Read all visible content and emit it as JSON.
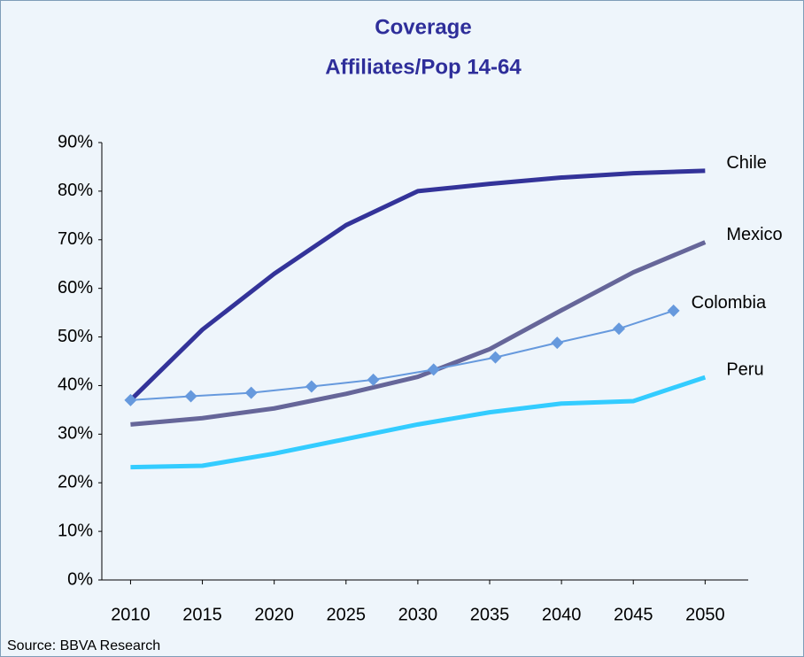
{
  "chart_data": {
    "type": "line",
    "title": "Coverage",
    "subtitle": "Affiliates/Pop 14-64",
    "source": "Source: BBVA Research",
    "xlim": [
      2008,
      2053
    ],
    "xticks": [
      2010,
      2015,
      2020,
      2025,
      2030,
      2035,
      2040,
      2045,
      2050
    ],
    "ylim": [
      0,
      90
    ],
    "yticks": [
      {
        "value": 0,
        "label": "0%"
      },
      {
        "value": 10,
        "label": "10%"
      },
      {
        "value": 20,
        "label": "20%"
      },
      {
        "value": 30,
        "label": "30%"
      },
      {
        "value": 40,
        "label": "40%"
      },
      {
        "value": 50,
        "label": "50%"
      },
      {
        "value": 60,
        "label": "60%"
      },
      {
        "value": 70,
        "label": "70%"
      },
      {
        "value": 80,
        "label": "80%"
      },
      {
        "value": 90,
        "label": "90%"
      }
    ],
    "series": [
      {
        "name": "Chile",
        "color": "#333399",
        "x": [
          2010,
          2015,
          2020,
          2025,
          2030,
          2035,
          2040,
          2045,
          2050
        ],
        "values": [
          37,
          51.5,
          63,
          73,
          80,
          81.5,
          82.8,
          83.7,
          84.2
        ]
      },
      {
        "name": "Mexico",
        "color": "#666699",
        "x": [
          2010,
          2015,
          2020,
          2025,
          2030,
          2035,
          2040,
          2045,
          2050
        ],
        "values": [
          32,
          33.3,
          35.3,
          38.3,
          41.8,
          47.5,
          55.5,
          63.3,
          69.5
        ]
      },
      {
        "name": "Colombia",
        "color": "#6699dd",
        "marker": "diamond",
        "x": [
          2010,
          2014.2,
          2018.4,
          2022.6,
          2026.9,
          2031.1,
          2035.4,
          2039.7,
          2044,
          2047.8
        ],
        "values": [
          37,
          37.8,
          38.5,
          39.8,
          41.2,
          43.3,
          45.8,
          48.8,
          51.7,
          55.4
        ]
      },
      {
        "name": "Peru",
        "color": "#33ccff",
        "x": [
          2010,
          2015,
          2020,
          2025,
          2030,
          2035,
          2040,
          2045,
          2050
        ],
        "values": [
          23.2,
          23.5,
          26,
          29,
          32,
          34.5,
          36.3,
          36.8,
          41.7
        ]
      }
    ]
  }
}
